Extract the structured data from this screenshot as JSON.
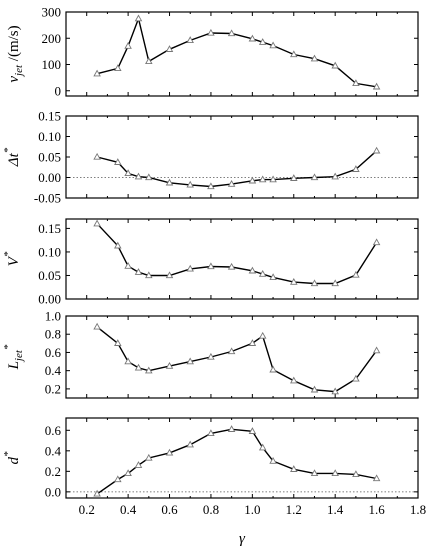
{
  "chart_data": [
    {
      "type": "line",
      "ylabel": "v_jet /(m/s)",
      "ylabel_parts": {
        "main": "v",
        "sub": "jet",
        "suffix": " /(m/s)"
      },
      "ylim": [
        -20,
        300
      ],
      "yticks": [
        0,
        100,
        200,
        300
      ],
      "ytick_labels": [
        "0",
        "100",
        "200",
        "300"
      ],
      "reference_line": null,
      "x": [
        0.25,
        0.35,
        0.4,
        0.45,
        0.5,
        0.6,
        0.7,
        0.8,
        0.9,
        1.0,
        1.05,
        1.1,
        1.2,
        1.3,
        1.4,
        1.5,
        1.6
      ],
      "values": [
        65,
        85,
        170,
        275,
        112,
        158,
        192,
        220,
        218,
        198,
        185,
        172,
        138,
        122,
        95,
        28,
        15
      ]
    },
    {
      "type": "line",
      "ylabel": "Δt*",
      "ylabel_parts": {
        "main": "Δt",
        "sub": "",
        "suffix": "",
        "sup": "*"
      },
      "ylim": [
        -0.05,
        0.15
      ],
      "yticks": [
        -0.05,
        0.0,
        0.05,
        0.1,
        0.15
      ],
      "ytick_labels": [
        "-0.05",
        "0.00",
        "0.05",
        "0.10",
        "0.15"
      ],
      "reference_line": 0,
      "x": [
        0.25,
        0.35,
        0.4,
        0.45,
        0.5,
        0.6,
        0.7,
        0.8,
        0.9,
        1.0,
        1.05,
        1.1,
        1.2,
        1.3,
        1.4,
        1.5,
        1.6
      ],
      "values": [
        0.05,
        0.037,
        0.01,
        0.002,
        0.0,
        -0.013,
        -0.018,
        -0.022,
        -0.016,
        -0.008,
        -0.005,
        -0.005,
        -0.002,
        0.0,
        0.002,
        0.02,
        0.065
      ]
    },
    {
      "type": "line",
      "ylabel": "V*",
      "ylabel_parts": {
        "main": "V",
        "sub": "",
        "suffix": "",
        "sup": "*"
      },
      "ylim": [
        0.0,
        0.17
      ],
      "yticks": [
        0.0,
        0.05,
        0.1,
        0.15
      ],
      "ytick_labels": [
        "0.00",
        "0.05",
        "0.10",
        "0.15"
      ],
      "reference_line": null,
      "x": [
        0.25,
        0.35,
        0.4,
        0.45,
        0.5,
        0.6,
        0.7,
        0.8,
        0.9,
        1.0,
        1.05,
        1.1,
        1.2,
        1.3,
        1.4,
        1.5,
        1.6
      ],
      "values": [
        0.16,
        0.113,
        0.07,
        0.057,
        0.05,
        0.05,
        0.064,
        0.069,
        0.068,
        0.06,
        0.053,
        0.046,
        0.036,
        0.033,
        0.033,
        0.051,
        0.12
      ]
    },
    {
      "type": "line",
      "ylabel": "L_jet*",
      "ylabel_parts": {
        "main": "L",
        "sub": "jet",
        "suffix": "",
        "sup": "*"
      },
      "ylim": [
        0.1,
        1.0
      ],
      "yticks": [
        0.2,
        0.4,
        0.6,
        0.8,
        1.0
      ],
      "ytick_labels": [
        "0.2",
        "0.4",
        "0.6",
        "0.8",
        "1.0"
      ],
      "reference_line": null,
      "x": [
        0.25,
        0.35,
        0.4,
        0.45,
        0.5,
        0.6,
        0.7,
        0.8,
        0.9,
        1.0,
        1.05,
        1.1,
        1.2,
        1.3,
        1.4,
        1.5,
        1.6
      ],
      "values": [
        0.88,
        0.7,
        0.5,
        0.43,
        0.4,
        0.45,
        0.5,
        0.55,
        0.61,
        0.7,
        0.78,
        0.41,
        0.29,
        0.19,
        0.17,
        0.31,
        0.62
      ]
    },
    {
      "type": "line",
      "ylabel": "d*",
      "ylabel_parts": {
        "main": "d",
        "sub": "",
        "suffix": "",
        "sup": "*"
      },
      "ylim": [
        -0.06,
        0.72
      ],
      "yticks": [
        0.0,
        0.2,
        0.4,
        0.6
      ],
      "ytick_labels": [
        "0.0",
        "0.2",
        "0.4",
        "0.6"
      ],
      "reference_line": 0,
      "x": [
        0.25,
        0.35,
        0.4,
        0.45,
        0.5,
        0.6,
        0.7,
        0.8,
        0.9,
        1.0,
        1.05,
        1.1,
        1.2,
        1.3,
        1.4,
        1.5,
        1.6
      ],
      "values": [
        -0.02,
        0.12,
        0.18,
        0.26,
        0.33,
        0.38,
        0.46,
        0.57,
        0.61,
        0.59,
        0.43,
        0.3,
        0.22,
        0.18,
        0.18,
        0.17,
        0.13
      ]
    }
  ],
  "x_axis": {
    "label": "γ",
    "xlim": [
      0.1,
      1.8
    ],
    "ticks": [
      0.2,
      0.4,
      0.6,
      0.8,
      1.0,
      1.2,
      1.4,
      1.6,
      1.8
    ],
    "tick_labels": [
      "0.2",
      "0.4",
      "0.6",
      "0.8",
      "1.0",
      "1.2",
      "1.4",
      "1.6",
      "1.8"
    ],
    "minor_ticks": [
      0.1,
      0.3,
      0.5,
      0.7,
      0.9,
      1.1,
      1.3,
      1.5,
      1.7
    ]
  }
}
